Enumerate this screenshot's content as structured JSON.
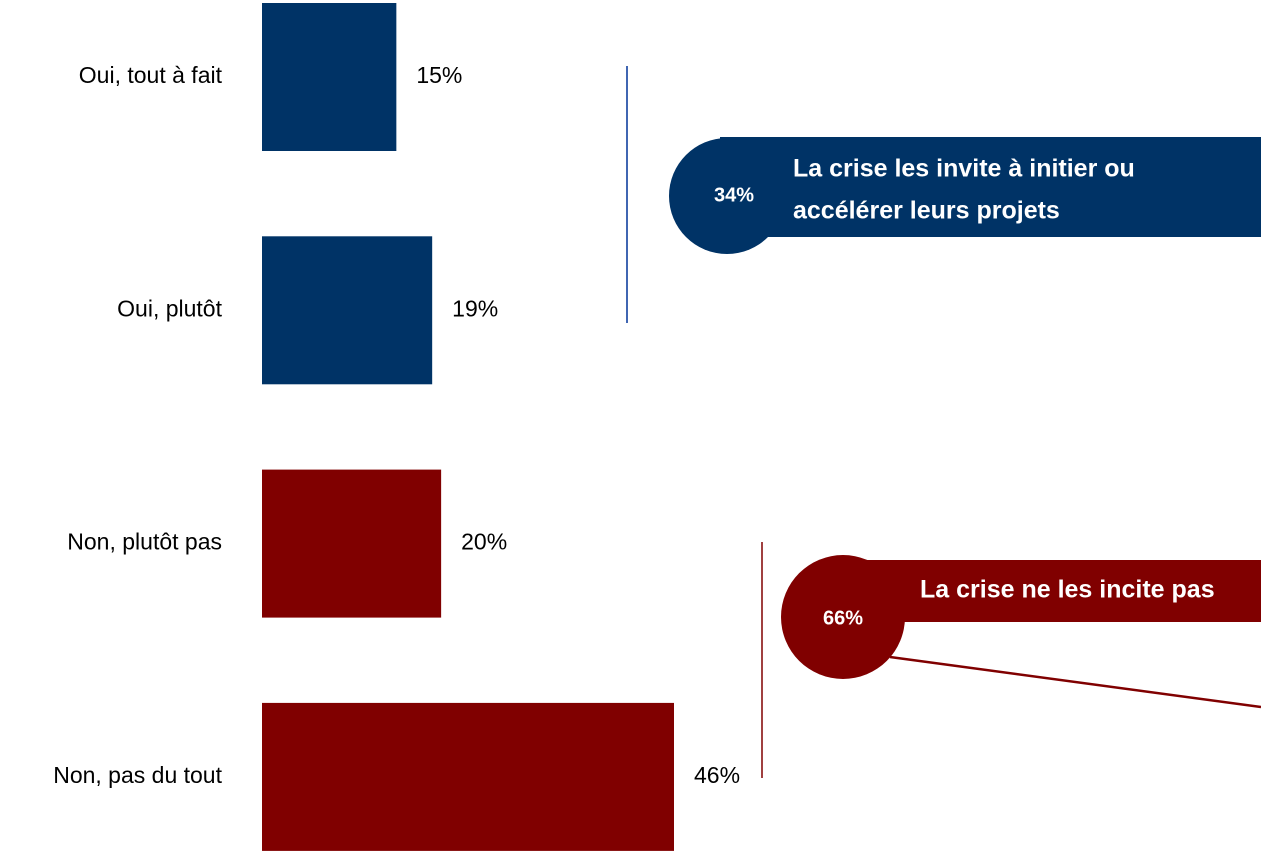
{
  "chart_data": {
    "type": "barh",
    "categories": [
      "Oui, tout à fait",
      "Oui, plutôt",
      "Non, plutôt pas",
      "Non, pas du tout"
    ],
    "values": [
      15,
      19,
      20,
      46
    ],
    "value_labels": [
      "15%",
      "19%",
      "20%",
      "46%"
    ],
    "colors": [
      "#003366",
      "#003366",
      "#800000",
      "#800000"
    ],
    "annotations": [
      {
        "label": "34%",
        "text": [
          "La crise les invite à initier ou",
          "accélérer leurs projets"
        ],
        "color": "#003366"
      },
      {
        "label": "66%",
        "text": [
          "La crise ne les incite pas"
        ],
        "color": "#800000"
      }
    ]
  }
}
